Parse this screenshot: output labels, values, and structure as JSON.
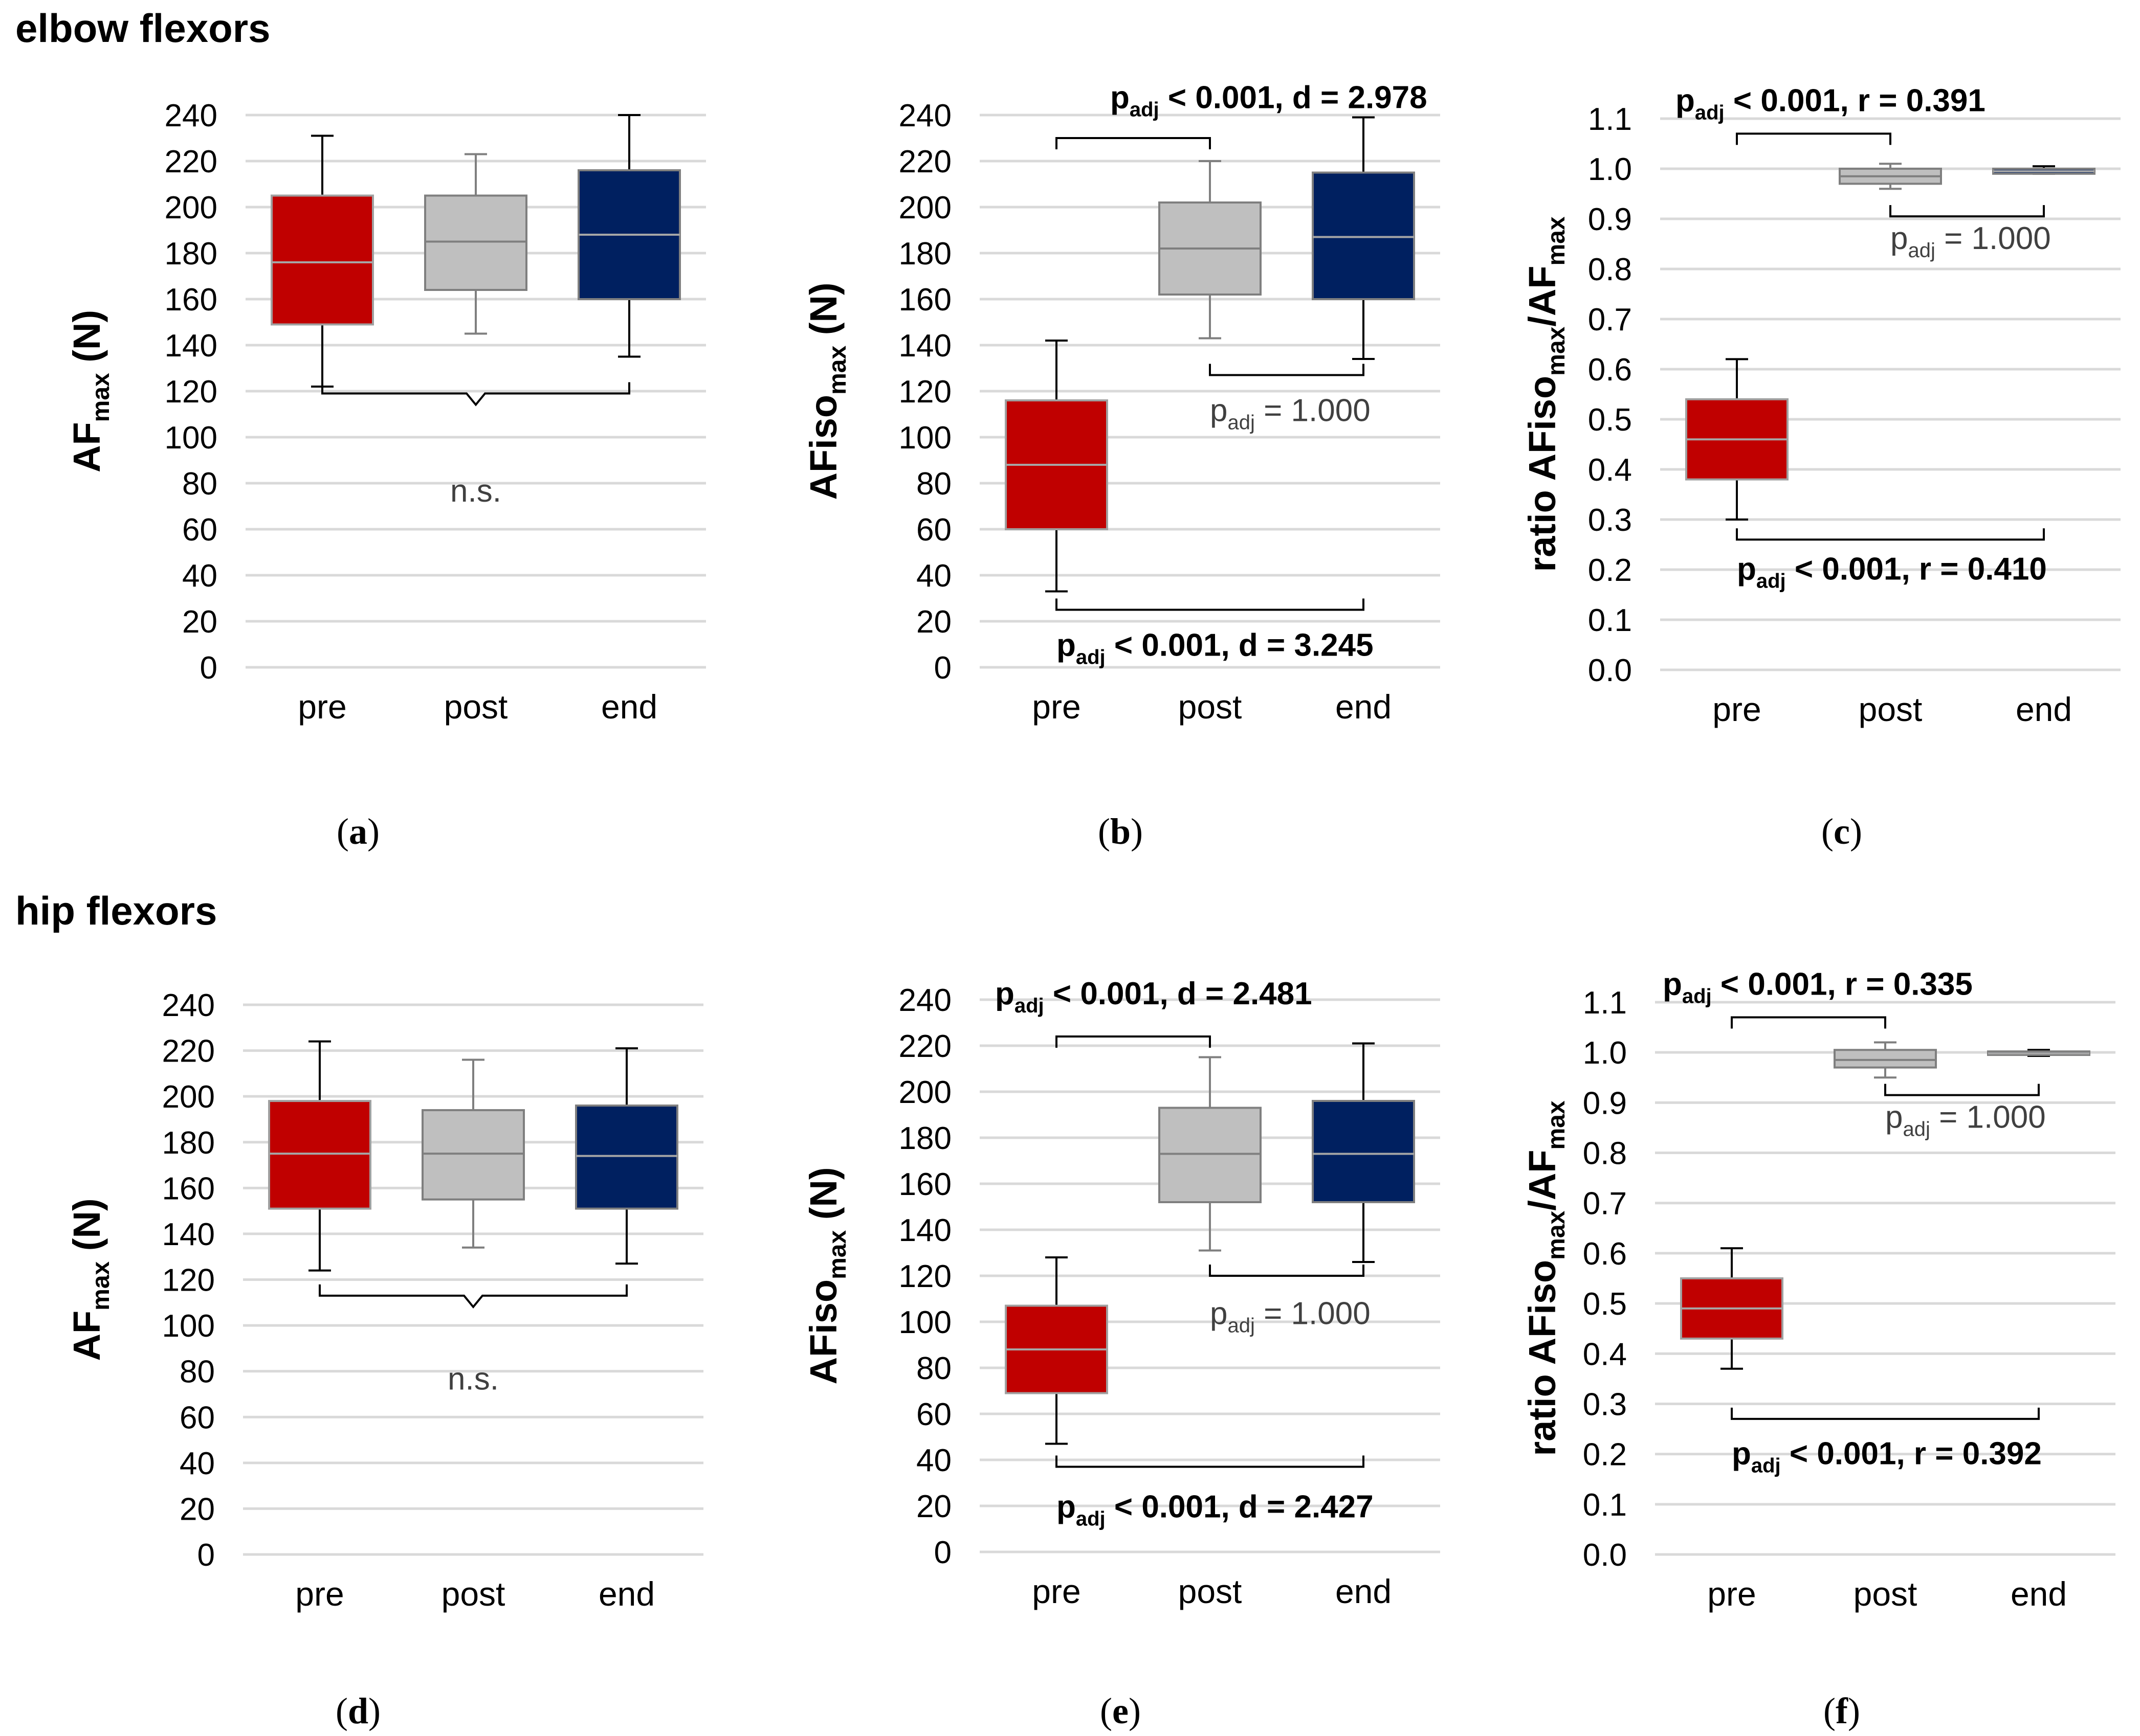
{
  "sections": [
    {
      "id": "elbow",
      "title": "elbow flexors"
    },
    {
      "id": "hip",
      "title": "hip flexors"
    }
  ],
  "colors": {
    "pre": "#c00000",
    "post": "#bfbfbf",
    "end": "#002060",
    "grid": "#d9d9d9",
    "text": "#000000"
  },
  "chart_data": [
    {
      "panel": "a",
      "section": "elbow",
      "type": "box",
      "ylabel_main": "AF",
      "ylabel_sub": "max",
      "ylabel_tail": " (N)",
      "ylim": [
        0,
        240
      ],
      "ytick_step": 20,
      "ytick_decimals": 0,
      "categories": [
        "pre",
        "post",
        "end"
      ],
      "boxes": [
        {
          "name": "pre",
          "whisker_low": 122,
          "q1": 149,
          "median": 176,
          "q3": 205,
          "whisker_high": 231
        },
        {
          "name": "post",
          "whisker_low": 145,
          "q1": 164,
          "median": 185,
          "q3": 205,
          "whisker_high": 223
        },
        {
          "name": "end",
          "whisker_low": 135,
          "q1": 160,
          "median": 188,
          "q3": 216,
          "whisker_high": 240
        }
      ],
      "annotations": [
        {
          "kind": "brace",
          "from": 0,
          "to": 2,
          "y": 119,
          "text_lines": [
            "n.s."
          ],
          "text_y": 72,
          "text_side": "below",
          "bold": false
        }
      ],
      "caption": "(a)"
    },
    {
      "panel": "b",
      "section": "elbow",
      "type": "box",
      "ylabel_main": "AFiso",
      "ylabel_sub": "max",
      "ylabel_tail": " (N)",
      "ylim": [
        0,
        240
      ],
      "ytick_step": 20,
      "ytick_decimals": 0,
      "categories": [
        "pre",
        "post",
        "end"
      ],
      "boxes": [
        {
          "name": "pre",
          "whisker_low": 33,
          "q1": 60,
          "median": 88,
          "q3": 116,
          "whisker_high": 142
        },
        {
          "name": "post",
          "whisker_low": 143,
          "q1": 162,
          "median": 182,
          "q3": 202,
          "whisker_high": 220
        },
        {
          "name": "end",
          "whisker_low": 134,
          "q1": 160,
          "median": 187,
          "q3": 215,
          "whisker_high": 239
        }
      ],
      "annotations": [
        {
          "kind": "bracket",
          "from": 0,
          "to": 1,
          "y": 230,
          "dir": "down",
          "p": "p",
          "sub": "adj",
          "rest": " < 0.001, d = 2.978",
          "bold": true,
          "text_y": 243,
          "text_x": "0.35"
        },
        {
          "kind": "bracket",
          "from": 1,
          "to": 2,
          "y": 127,
          "dir": "up",
          "p": "p",
          "sub": "adj",
          "rest": " = 1.000",
          "bold": false,
          "text_y": 107,
          "text_x": "1.0"
        },
        {
          "kind": "bracket",
          "from": 0,
          "to": 2,
          "y": 25,
          "dir": "up",
          "p": "p",
          "sub": "adj",
          "rest": " < 0.001, d = 3.245",
          "bold": true,
          "text_y": 5,
          "text_x": "0.0"
        }
      ],
      "caption": "(b)"
    },
    {
      "panel": "c",
      "section": "elbow",
      "type": "box",
      "ylabel_main": "ratio AFiso",
      "ylabel_sub": "max",
      "ylabel_mid": "/AF",
      "ylabel_sub2": "max",
      "ylabel_tail": "",
      "ylim": [
        0,
        1.1
      ],
      "ytick_step": 0.1,
      "ytick_decimals": 1,
      "categories": [
        "pre",
        "post",
        "end"
      ],
      "boxes": [
        {
          "name": "pre",
          "whisker_low": 0.3,
          "q1": 0.38,
          "median": 0.46,
          "q3": 0.54,
          "whisker_high": 0.62
        },
        {
          "name": "post",
          "whisker_low": 0.96,
          "q1": 0.97,
          "median": 0.985,
          "q3": 1.0,
          "whisker_high": 1.01
        },
        {
          "name": "end",
          "whisker_low": 0.99,
          "q1": 0.99,
          "median": 0.995,
          "q3": 1.0,
          "whisker_high": 1.005
        }
      ],
      "annotations": [
        {
          "kind": "bracket",
          "from": 0,
          "to": 1,
          "y": 1.07,
          "dir": "down",
          "p": "p",
          "sub": "adj",
          "rest": " < 0.001, r = 0.391",
          "bold": true,
          "text_y": 1.115,
          "text_x": "-0.4"
        },
        {
          "kind": "bracket",
          "from": 1,
          "to": 2,
          "y": 0.905,
          "dir": "up",
          "p": "p",
          "sub": "adj",
          "rest": " = 1.000",
          "bold": false,
          "text_y": 0.84,
          "text_x": "1.0"
        },
        {
          "kind": "bracket",
          "from": 0,
          "to": 2,
          "y": 0.26,
          "dir": "up",
          "p": "p",
          "sub": "adj",
          "rest": " < 0.001, r = 0.410",
          "bold": true,
          "text_y": 0.18,
          "text_x": "0.0"
        }
      ],
      "caption": "(c)"
    },
    {
      "panel": "d",
      "section": "hip",
      "type": "box",
      "ylabel_main": "AF",
      "ylabel_sub": "max",
      "ylabel_tail": " (N)",
      "ylim": [
        0,
        240
      ],
      "ytick_step": 20,
      "ytick_decimals": 0,
      "categories": [
        "pre",
        "post",
        "end"
      ],
      "boxes": [
        {
          "name": "pre",
          "whisker_low": 124,
          "q1": 151,
          "median": 175,
          "q3": 198,
          "whisker_high": 224
        },
        {
          "name": "post",
          "whisker_low": 134,
          "q1": 155,
          "median": 175,
          "q3": 194,
          "whisker_high": 216
        },
        {
          "name": "end",
          "whisker_low": 127,
          "q1": 151,
          "median": 174,
          "q3": 196,
          "whisker_high": 221
        }
      ],
      "annotations": [
        {
          "kind": "brace",
          "from": 0,
          "to": 2,
          "y": 113,
          "text_lines": [
            "n.s."
          ],
          "text_y": 72,
          "text_side": "below",
          "bold": false
        }
      ],
      "caption": "(d)"
    },
    {
      "panel": "e",
      "section": "hip",
      "type": "box",
      "ylabel_main": "AFiso",
      "ylabel_sub": "max",
      "ylabel_tail": " (N)",
      "ylim": [
        0,
        240
      ],
      "ytick_step": 20,
      "ytick_decimals": 0,
      "categories": [
        "pre",
        "post",
        "end"
      ],
      "boxes": [
        {
          "name": "pre",
          "whisker_low": 47,
          "q1": 69,
          "median": 88,
          "q3": 107,
          "whisker_high": 128
        },
        {
          "name": "post",
          "whisker_low": 131,
          "q1": 152,
          "median": 173,
          "q3": 193,
          "whisker_high": 215
        },
        {
          "name": "end",
          "whisker_low": 126,
          "q1": 152,
          "median": 173,
          "q3": 196,
          "whisker_high": 221
        }
      ],
      "annotations": [
        {
          "kind": "bracket",
          "from": 0,
          "to": 1,
          "y": 224,
          "dir": "down",
          "p": "p",
          "sub": "adj",
          "rest": " < 0.001, d = 2.481",
          "bold": true,
          "text_y": 238,
          "text_x": "-0.4"
        },
        {
          "kind": "bracket",
          "from": 1,
          "to": 2,
          "y": 120,
          "dir": "up",
          "p": "p",
          "sub": "adj",
          "rest": " = 1.000",
          "bold": false,
          "text_y": 99,
          "text_x": "1.0"
        },
        {
          "kind": "bracket",
          "from": 0,
          "to": 2,
          "y": 37,
          "dir": "up",
          "p": "p",
          "sub": "adj",
          "rest": " < 0.001, d = 2.427",
          "bold": true,
          "text_y": 15,
          "text_x": "0.0"
        }
      ],
      "caption": "(e)"
    },
    {
      "panel": "f",
      "section": "hip",
      "type": "box",
      "ylabel_main": "ratio AFiso",
      "ylabel_sub": "max",
      "ylabel_mid": "/AF",
      "ylabel_sub2": "max",
      "ylabel_tail": "",
      "ylim": [
        0,
        1.1
      ],
      "ytick_step": 0.1,
      "ytick_decimals": 1,
      "categories": [
        "pre",
        "post",
        "end"
      ],
      "boxes": [
        {
          "name": "pre",
          "whisker_low": 0.37,
          "q1": 0.43,
          "median": 0.49,
          "q3": 0.55,
          "whisker_high": 0.61
        },
        {
          "name": "post",
          "whisker_low": 0.95,
          "q1": 0.97,
          "median": 0.985,
          "q3": 1.005,
          "whisker_high": 1.02
        },
        {
          "name": "end",
          "whisker_low": 0.993,
          "q1": 0.995,
          "median": 0.998,
          "q3": 1.002,
          "whisker_high": 1.005
        }
      ],
      "annotations": [
        {
          "kind": "bracket",
          "from": 0,
          "to": 1,
          "y": 1.07,
          "dir": "down",
          "p": "p",
          "sub": "adj",
          "rest": " < 0.001, r = 0.335",
          "bold": true,
          "text_y": 1.115,
          "text_x": "-0.45"
        },
        {
          "kind": "bracket",
          "from": 1,
          "to": 2,
          "y": 0.915,
          "dir": "up",
          "p": "p",
          "sub": "adj",
          "rest": " = 1.000",
          "bold": false,
          "text_y": 0.85,
          "text_x": "1.0"
        },
        {
          "kind": "bracket",
          "from": 0,
          "to": 2,
          "y": 0.27,
          "dir": "up",
          "p": "p",
          "sub": "adj",
          "rest": " < 0.001, r = 0.392",
          "bold": true,
          "text_y": 0.18,
          "text_x": "0.0"
        }
      ],
      "caption": "(f)"
    }
  ]
}
